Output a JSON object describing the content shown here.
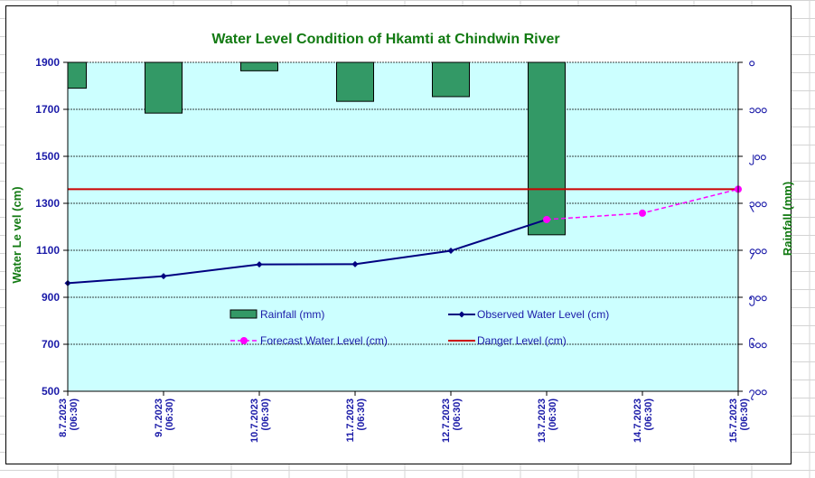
{
  "chart_data": {
    "type": "bar+line",
    "title": "Water Level Condition  of  Hkamti  at Chindwin  River",
    "y_left_label": "Water Le vel (cm)",
    "y_right_label": "Rainfall (mm)",
    "y_left_range": [
      500,
      1900
    ],
    "y_left_ticks": [
      "500",
      "700",
      "900",
      "1100",
      "1300",
      "1500",
      "1700",
      "1900"
    ],
    "y_right_range": [
      0,
      700
    ],
    "y_right_ticks": [
      "၀",
      "၁၀၀",
      "၂၀၀",
      "၃၀၀",
      "၄၀၀",
      "၅၀၀",
      "၆၀၀",
      "၇၀၀"
    ],
    "x_dates": [
      "8.7.2023",
      "9.7.2023",
      "10.7.2023",
      "11.7.2023",
      "12.7.2023",
      "13.7.2023",
      "14.7.2023",
      "15.7.2023"
    ],
    "x_times": [
      "(06:30)",
      "(06:30)",
      "(06:30)",
      "(06:30)",
      "(06:30)",
      "(06:30)",
      "(06:30)",
      "(06:30)"
    ],
    "grid": true,
    "series": [
      {
        "name": "Rainfall (mm)",
        "kind": "bar",
        "axis": "right",
        "color": "#339966",
        "values": [
          55,
          108,
          18,
          83,
          73,
          367,
          null,
          null
        ]
      },
      {
        "name": "Observed Water Level (cm)",
        "kind": "line",
        "axis": "left",
        "color": "#000080",
        "values": [
          960,
          990,
          1040,
          1041,
          1098,
          1231,
          null,
          null
        ]
      },
      {
        "name": "Forecast Water Level (cm)",
        "kind": "line-dashed",
        "axis": "left",
        "color": "#ff00ff",
        "values": [
          null,
          null,
          null,
          null,
          null,
          1231,
          1258,
          1360
        ]
      },
      {
        "name": "Danger Level (cm)",
        "kind": "hline",
        "axis": "left",
        "color": "#cc0000",
        "value": 1360
      }
    ],
    "legend": "inside-bottom"
  },
  "colors": {
    "plot_bg": "#ccffff",
    "axis_text": "#1a1aa8",
    "title": "#127a12"
  }
}
